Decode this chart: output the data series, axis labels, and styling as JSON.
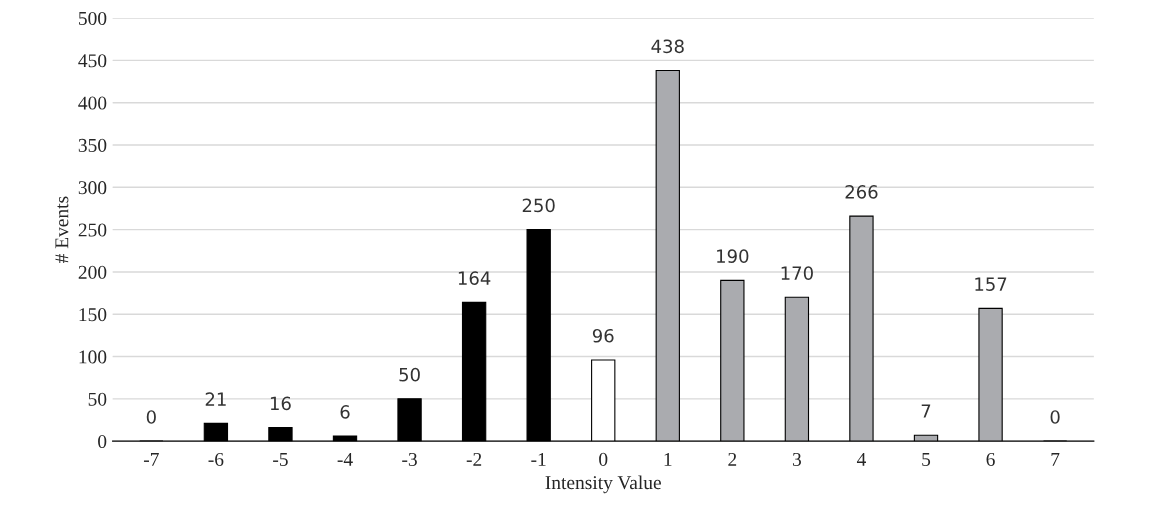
{
  "chart_data": {
    "type": "bar",
    "xlabel": "Intensity Value",
    "ylabel": "# Events",
    "categories": [
      "-7",
      "-6",
      "-5",
      "-4",
      "-3",
      "-2",
      "-1",
      "0",
      "1",
      "2",
      "3",
      "4",
      "5",
      "6",
      "7"
    ],
    "values": [
      0,
      21,
      16,
      6,
      50,
      164,
      250,
      96,
      438,
      190,
      170,
      266,
      7,
      157,
      0
    ],
    "colors": [
      "#000000",
      "#000000",
      "#000000",
      "#000000",
      "#000000",
      "#000000",
      "#000000",
      "#ffffff",
      "#aaabaf",
      "#aaabaf",
      "#aaabaf",
      "#aaabaf",
      "#aaabaf",
      "#aaabaf",
      "#aaabaf"
    ],
    "ylim": [
      0,
      500
    ],
    "yticks": [
      0,
      50,
      100,
      150,
      200,
      250,
      300,
      350,
      400,
      450,
      500
    ],
    "grid": "y",
    "data_labels": true
  }
}
